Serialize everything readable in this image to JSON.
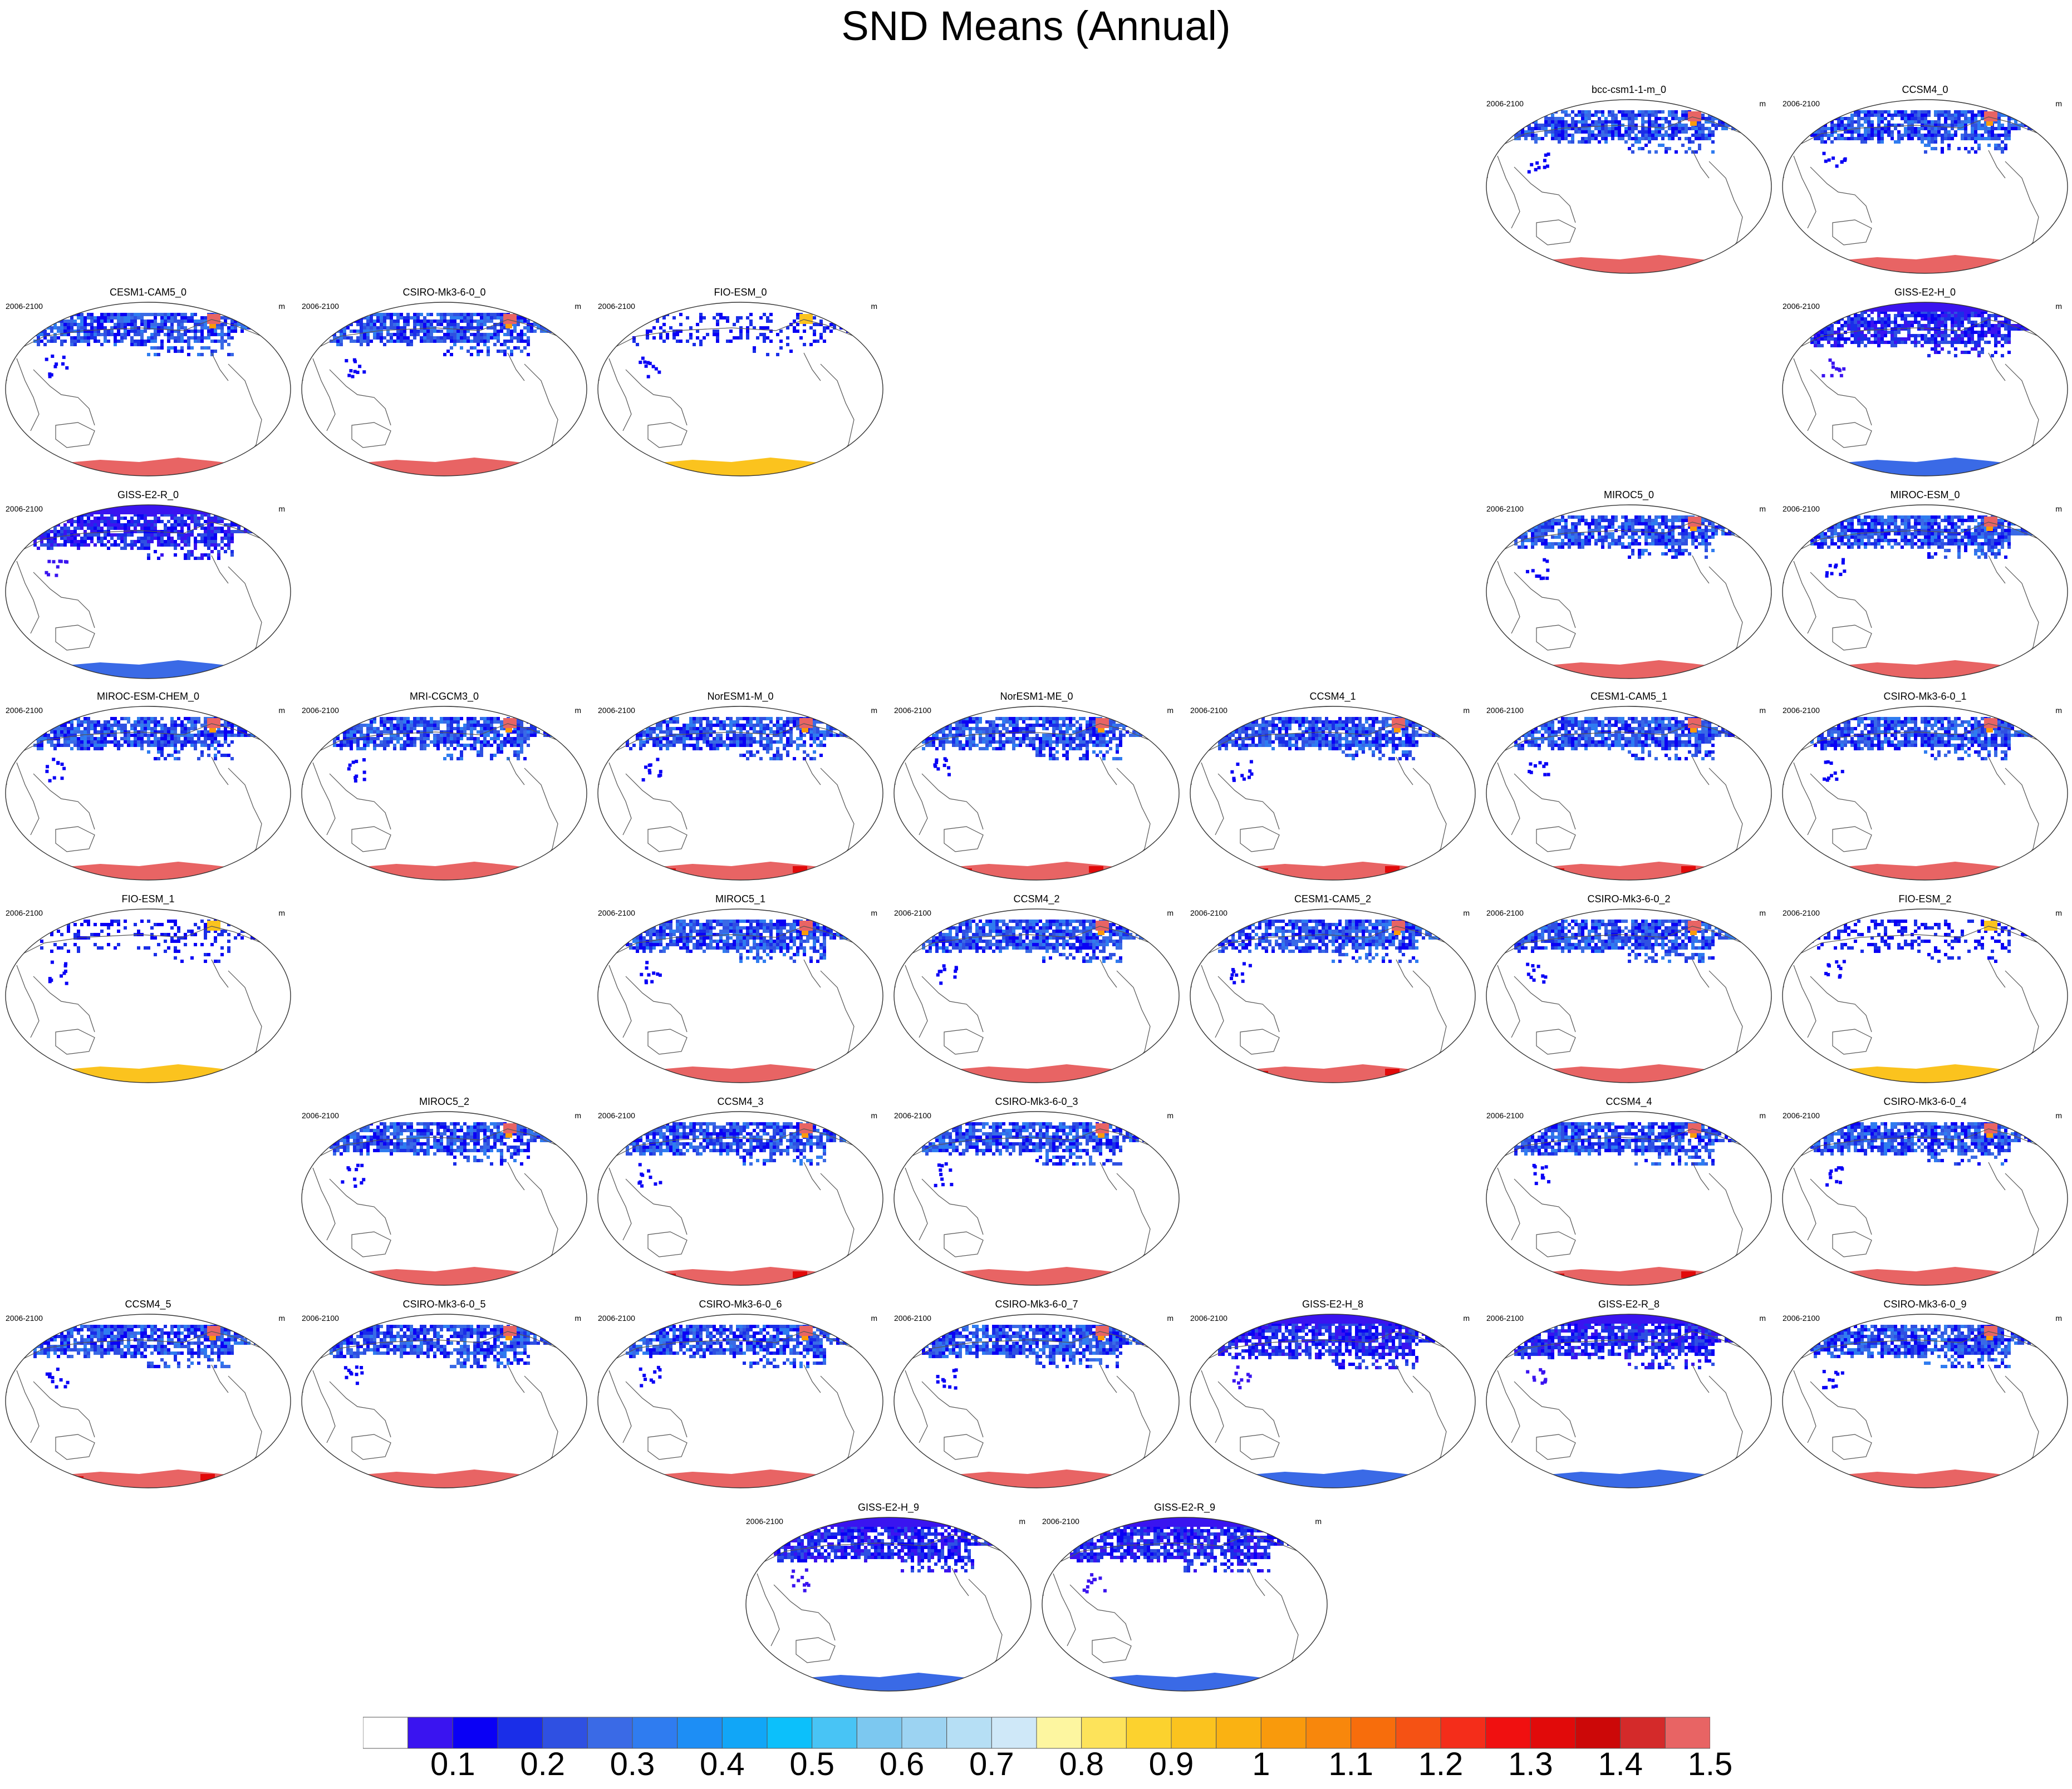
{
  "title": "SND Means (Annual)",
  "period": "2006-2100",
  "unit": "m",
  "panels": [
    {
      "name": "bcc-csm1-1-m_0",
      "row": 0,
      "col": 5,
      "nh": "blue",
      "sh": "pink"
    },
    {
      "name": "CCSM4_0",
      "row": 0,
      "col": 6,
      "nh": "blue",
      "sh": "pink"
    },
    {
      "name": "CESM1-CAM5_0",
      "row": 1,
      "col": 0,
      "nh": "blue",
      "sh": "pink"
    },
    {
      "name": "CSIRO-Mk3-6-0_0",
      "row": 1,
      "col": 1,
      "nh": "blue",
      "sh": "pink"
    },
    {
      "name": "FIO-ESM_0",
      "row": 1,
      "col": 2,
      "nh": "sparse",
      "sh": "yellow"
    },
    {
      "name": "GISS-E2-H_0",
      "row": 1,
      "col": 6,
      "nh": "giss",
      "sh": "royal"
    },
    {
      "name": "GISS-E2-R_0",
      "row": 2,
      "col": 0,
      "nh": "giss",
      "sh": "royal"
    },
    {
      "name": "MIROC5_0",
      "row": 2,
      "col": 5,
      "nh": "blue",
      "sh": "pink"
    },
    {
      "name": "MIROC-ESM_0",
      "row": 2,
      "col": 6,
      "nh": "blue",
      "sh": "pink"
    },
    {
      "name": "MIROC-ESM-CHEM_0",
      "row": 3,
      "col": 0,
      "nh": "blue",
      "sh": "pink"
    },
    {
      "name": "MRI-CGCM3_0",
      "row": 3,
      "col": 1,
      "nh": "blue",
      "sh": "pink"
    },
    {
      "name": "NorESM1-M_0",
      "row": 3,
      "col": 2,
      "nh": "blue",
      "sh": "red"
    },
    {
      "name": "NorESM1-ME_0",
      "row": 3,
      "col": 3,
      "nh": "blue",
      "sh": "red"
    },
    {
      "name": "CCSM4_1",
      "row": 3,
      "col": 4,
      "nh": "blue",
      "sh": "red"
    },
    {
      "name": "CESM1-CAM5_1",
      "row": 3,
      "col": 5,
      "nh": "blue",
      "sh": "red"
    },
    {
      "name": "CSIRO-Mk3-6-0_1",
      "row": 3,
      "col": 6,
      "nh": "blue",
      "sh": "pink"
    },
    {
      "name": "FIO-ESM_1",
      "row": 4,
      "col": 0,
      "nh": "sparse",
      "sh": "yellow"
    },
    {
      "name": "MIROC5_1",
      "row": 4,
      "col": 2,
      "nh": "blue",
      "sh": "pink"
    },
    {
      "name": "CCSM4_2",
      "row": 4,
      "col": 3,
      "nh": "blue",
      "sh": "pink"
    },
    {
      "name": "CESM1-CAM5_2",
      "row": 4,
      "col": 4,
      "nh": "blue",
      "sh": "red"
    },
    {
      "name": "CSIRO-Mk3-6-0_2",
      "row": 4,
      "col": 5,
      "nh": "blue",
      "sh": "pink"
    },
    {
      "name": "FIO-ESM_2",
      "row": 4,
      "col": 6,
      "nh": "sparse",
      "sh": "yellow"
    },
    {
      "name": "MIROC5_2",
      "row": 5,
      "col": 1,
      "nh": "blue",
      "sh": "pink"
    },
    {
      "name": "CCSM4_3",
      "row": 5,
      "col": 2,
      "nh": "blue",
      "sh": "red"
    },
    {
      "name": "CSIRO-Mk3-6-0_3",
      "row": 5,
      "col": 3,
      "nh": "blue",
      "sh": "pink"
    },
    {
      "name": "CCSM4_4",
      "row": 5,
      "col": 5,
      "nh": "blue",
      "sh": "red"
    },
    {
      "name": "CSIRO-Mk3-6-0_4",
      "row": 5,
      "col": 6,
      "nh": "blue",
      "sh": "pink"
    },
    {
      "name": "CCSM4_5",
      "row": 6,
      "col": 0,
      "nh": "blue",
      "sh": "red"
    },
    {
      "name": "CSIRO-Mk3-6-0_5",
      "row": 6,
      "col": 1,
      "nh": "blue",
      "sh": "pink"
    },
    {
      "name": "CSIRO-Mk3-6-0_6",
      "row": 6,
      "col": 2,
      "nh": "blue",
      "sh": "pink"
    },
    {
      "name": "CSIRO-Mk3-6-0_7",
      "row": 6,
      "col": 3,
      "nh": "blue",
      "sh": "pink"
    },
    {
      "name": "GISS-E2-H_8",
      "row": 6,
      "col": 4,
      "nh": "giss",
      "sh": "royal"
    },
    {
      "name": "GISS-E2-R_8",
      "row": 6,
      "col": 5,
      "nh": "giss",
      "sh": "royal"
    },
    {
      "name": "CSIRO-Mk3-6-0_9",
      "row": 6,
      "col": 6,
      "nh": "blue",
      "sh": "pink"
    },
    {
      "name": "GISS-E2-H_9",
      "row": 7,
      "col": "c1",
      "nh": "giss",
      "sh": "royal"
    },
    {
      "name": "GISS-E2-R_9",
      "row": 7,
      "col": "c2",
      "nh": "giss",
      "sh": "royal"
    }
  ],
  "colorbar": {
    "colors": [
      "#ffffff",
      "#3a14f0",
      "#0a00f5",
      "#1a2ee8",
      "#2f50e2",
      "#3a6ae6",
      "#2f7cf0",
      "#1d8ef5",
      "#11a6f7",
      "#0cc0fb",
      "#48c4f5",
      "#7cc8f0",
      "#9cd3f2",
      "#b6dff5",
      "#cfe8f8",
      "#fdf6a0",
      "#fde35a",
      "#fcd22e",
      "#fbc31e",
      "#fab212",
      "#f99a0c",
      "#f8870c",
      "#f76d0c",
      "#f55214",
      "#f42d1a",
      "#f01010",
      "#e10a0a",
      "#cc0808",
      "#d42a2a",
      "#e86464"
    ],
    "labels": [
      "0.1",
      "0.2",
      "0.3",
      "0.4",
      "0.5",
      "0.6",
      "0.7",
      "0.8",
      "0.9",
      "1",
      "1.1",
      "1.2",
      "1.3",
      "1.4",
      "1.5"
    ]
  }
}
